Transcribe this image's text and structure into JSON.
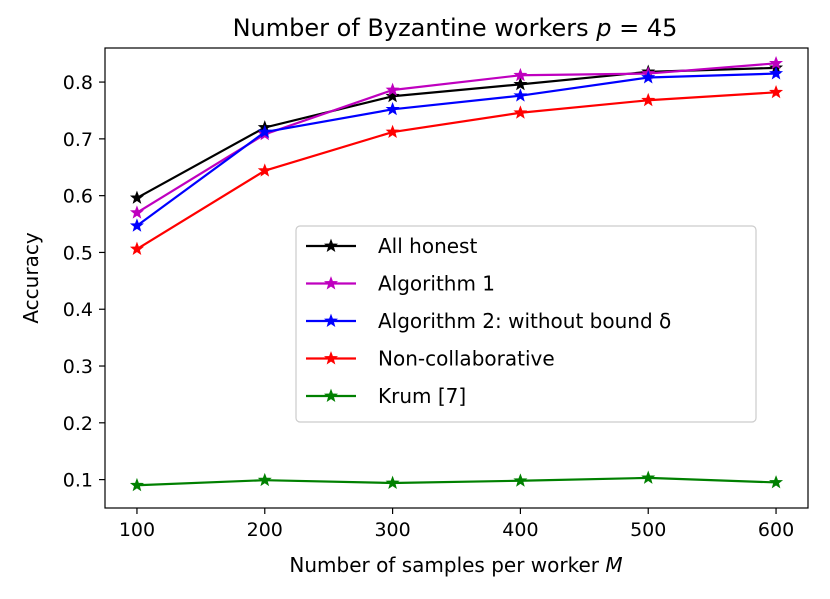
{
  "chart_data": {
    "type": "line",
    "title": "Number of Byzantine workers p = 45",
    "title_text": "Number of Byzantine workers ",
    "title_var": "p",
    "title_rest": " = 45",
    "xlabel": "Number of samples per worker M",
    "xlabel_text": "Number of samples per worker ",
    "xlabel_var": "M",
    "ylabel": "Accuracy",
    "x": [
      100,
      200,
      300,
      400,
      500,
      600
    ],
    "xlim": [
      75,
      625
    ],
    "ylim": [
      0.05,
      0.86
    ],
    "xticks": [
      100,
      200,
      300,
      400,
      500,
      600
    ],
    "yticks": [
      0.1,
      0.2,
      0.3,
      0.4,
      0.5,
      0.6,
      0.7,
      0.8
    ],
    "grid": false,
    "legend_position": "center-right",
    "marker": "star",
    "series": [
      {
        "name": "All honest",
        "color": "#000000",
        "values": [
          0.596,
          0.72,
          0.775,
          0.796,
          0.818,
          0.825
        ]
      },
      {
        "name": "Algorithm 1",
        "color": "#bf00bf",
        "values": [
          0.57,
          0.708,
          0.786,
          0.812,
          0.815,
          0.833
        ]
      },
      {
        "name": "Algorithm 2: without bound δ",
        "color": "#0000ff",
        "values": [
          0.547,
          0.712,
          0.752,
          0.776,
          0.808,
          0.815
        ]
      },
      {
        "name": "Non-collaborative",
        "color": "#ff0000",
        "values": [
          0.506,
          0.644,
          0.712,
          0.746,
          0.768,
          0.782
        ]
      },
      {
        "name": "Krum [7]",
        "color": "#008000",
        "values": [
          0.09,
          0.099,
          0.094,
          0.098,
          0.103,
          0.095
        ]
      }
    ]
  }
}
